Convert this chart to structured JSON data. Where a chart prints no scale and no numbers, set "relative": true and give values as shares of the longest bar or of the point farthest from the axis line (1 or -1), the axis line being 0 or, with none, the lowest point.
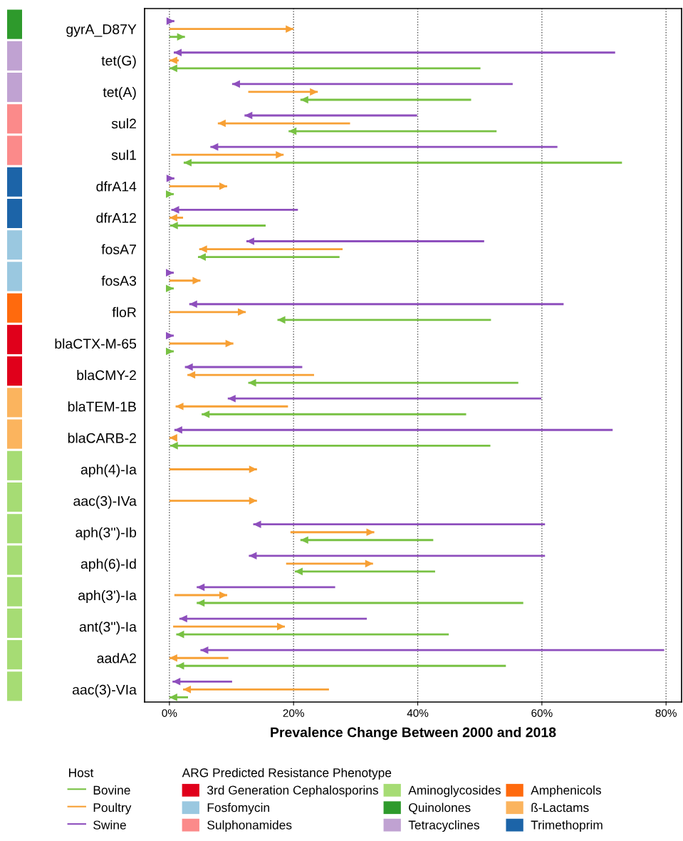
{
  "chart_data": [
    {
      "type": "bar",
      "orientation": "horizontal",
      "relative": true,
      "stacked": true,
      "legend": "bottom",
      "legend_title": "ARG Predicted Resistance Phenotype",
      "categories": [
        null,
        null,
        null,
        null,
        null,
        null,
        null,
        null,
        null,
        null,
        null,
        null,
        null,
        null,
        null,
        null,
        null,
        null,
        null,
        null,
        null,
        null
      ],
      "series": [
        {
          "name": "3rd Generation Cephalosporins",
          "color": "#e0001b",
          "values": [
            null,
            null,
            null,
            null,
            null,
            null,
            null,
            null,
            null,
            null,
            1,
            1,
            null,
            null,
            null,
            null,
            null,
            null,
            null,
            null,
            null,
            null
          ]
        },
        {
          "name": "Aminoglycosides",
          "color": "#a6dc74",
          "values": [
            null,
            null,
            null,
            null,
            null,
            null,
            null,
            null,
            null,
            null,
            null,
            null,
            null,
            null,
            1,
            1,
            1,
            1,
            1,
            1,
            1,
            1
          ]
        },
        {
          "name": "Amphenicols",
          "color": "#ff6a0d",
          "values": [
            null,
            null,
            null,
            null,
            null,
            null,
            null,
            null,
            null,
            1,
            null,
            null,
            null,
            null,
            null,
            null,
            null,
            null,
            null,
            null,
            null,
            null
          ]
        },
        {
          "name": "Fosfomycin",
          "color": "#9ac8e0",
          "values": [
            null,
            null,
            null,
            null,
            null,
            null,
            null,
            1,
            1,
            null,
            null,
            null,
            null,
            null,
            null,
            null,
            null,
            null,
            null,
            null,
            null,
            null
          ]
        },
        {
          "name": "Quinolones",
          "color": "#2e9a2c",
          "values": [
            1,
            null,
            null,
            null,
            null,
            null,
            null,
            null,
            null,
            null,
            null,
            null,
            null,
            null,
            null,
            null,
            null,
            null,
            null,
            null,
            null,
            null
          ]
        },
        {
          "name": "ß-Lactams",
          "color": "#fbb45e",
          "values": [
            null,
            null,
            null,
            null,
            null,
            null,
            null,
            null,
            null,
            null,
            null,
            null,
            1,
            1,
            null,
            null,
            null,
            null,
            null,
            null,
            null,
            null
          ]
        },
        {
          "name": "Sulphonamides",
          "color": "#fb8a8a",
          "values": [
            null,
            null,
            null,
            1,
            1,
            null,
            null,
            null,
            null,
            null,
            null,
            null,
            null,
            null,
            null,
            null,
            null,
            null,
            null,
            null,
            null,
            null
          ]
        },
        {
          "name": "Tetracyclines",
          "color": "#c0a2d2",
          "values": [
            null,
            1,
            1,
            null,
            null,
            null,
            null,
            null,
            null,
            null,
            null,
            null,
            null,
            null,
            null,
            null,
            null,
            null,
            null,
            null,
            null,
            null
          ]
        },
        {
          "name": "Trimethoprim",
          "color": "#1c64a8",
          "values": [
            null,
            null,
            null,
            null,
            null,
            1,
            1,
            null,
            null,
            null,
            null,
            null,
            null,
            null,
            null,
            null,
            null,
            null,
            null,
            null,
            null,
            null
          ]
        }
      ]
    },
    {
      "type": "bar",
      "orientation": "horizontal",
      "xlabel": "Prevalence Change Between 2000 and 2018",
      "legend": "bottom",
      "legend_title": "Host",
      "grid": "x",
      "line_style": "dotted",
      "xlim": [
        -4,
        82.5
      ],
      "xticks": [
        {
          "value": 0,
          "label": "0%"
        },
        {
          "value": 20,
          "label": "20%"
        },
        {
          "value": 40,
          "label": "40%"
        },
        {
          "value": 60,
          "label": "60%"
        },
        {
          "value": 80,
          "label": "80%"
        }
      ],
      "categories": [
        "gyrA_D87Y",
        "tet(G)",
        "tet(A)",
        "sul2",
        "sul1",
        "dfrA14",
        "dfrA12",
        "fosA7",
        "fosA3",
        "floR",
        "blaCTX-M-65",
        "blaCMY-2",
        "blaTEM-1B",
        "blaCARB-2",
        "aph(4)-Ia",
        "aac(3)-IVa",
        "aph(3'')-Ib",
        "aph(6)-Id",
        "aph(3')-Ia",
        "ant(3'')-Ia",
        "aadA2",
        "aac(3)-VIa"
      ],
      "series": [
        {
          "name": "Bovine",
          "color": "#78c143",
          "base": [
            0,
            50.1,
            48.6,
            52.7,
            72.9,
            0,
            15.5,
            27.4,
            0,
            51.8,
            0,
            56.2,
            47.8,
            51.7,
            null,
            null,
            42.5,
            42.8,
            57.0,
            45.0,
            54.2,
            3.0
          ],
          "values": [
            2.5,
            -50.1,
            -27.5,
            -33.5,
            -70.6,
            0.7,
            -15.4,
            -22.8,
            0.7,
            -34.4,
            0.7,
            -43.5,
            -42.6,
            -51.6,
            null,
            null,
            -21.4,
            -22.6,
            -52.6,
            -43.9,
            -53.1,
            -3.0
          ]
        },
        {
          "name": "Poultry",
          "color": "#f7a035",
          "base": [
            0,
            1.5,
            12.7,
            29.1,
            0.3,
            0,
            2.2,
            27.9,
            0,
            0,
            0,
            23.3,
            19.1,
            1.0,
            0,
            0,
            19.5,
            18.8,
            0.8,
            0.6,
            9.5,
            25.7
          ],
          "values": [
            20,
            -1.5,
            11.2,
            -21.3,
            18.1,
            9.3,
            -2.2,
            -23.1,
            5,
            12.3,
            10.3,
            -20.4,
            -18.1,
            -1.0,
            14.1,
            14.1,
            13.5,
            14.0,
            8.5,
            18.0,
            -9.5,
            -23.5
          ]
        },
        {
          "name": "Swine",
          "color": "#8e4fbd",
          "base": [
            0,
            71.8,
            55.3,
            39.9,
            62.5,
            0,
            20.7,
            50.7,
            0,
            63.5,
            0,
            21.4,
            59.9,
            71.4,
            null,
            null,
            60.5,
            60.5,
            26.7,
            31.8,
            79.7,
            10.1
          ],
          "values": [
            0.8,
            -71.1,
            -45.2,
            -27.8,
            -55.9,
            0.8,
            -20.4,
            -38.3,
            0.7,
            -60.3,
            0.7,
            -18.9,
            -50.5,
            -70.6,
            null,
            null,
            -47.0,
            -47.7,
            -22.3,
            -30.2,
            -74.7,
            -9.6
          ]
        }
      ]
    }
  ]
}
